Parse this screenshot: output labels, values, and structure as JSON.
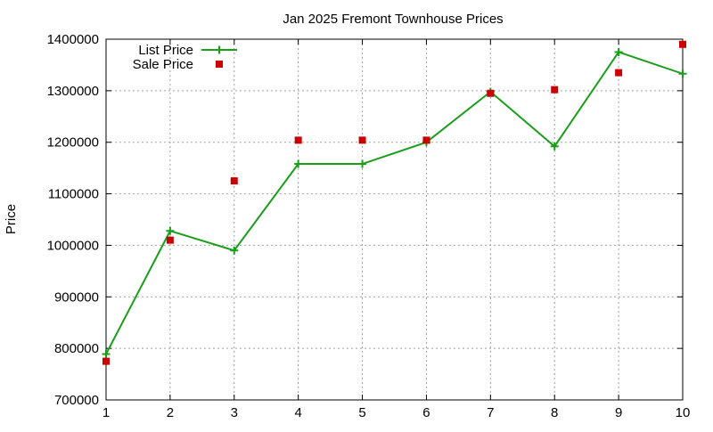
{
  "chart_data": {
    "type": "line",
    "title": "Jan 2025 Fremont Townhouse Prices",
    "xlabel": "",
    "ylabel": "Price",
    "x": [
      1,
      2,
      3,
      4,
      5,
      6,
      7,
      8,
      9,
      10
    ],
    "xlim": [
      1,
      10
    ],
    "ylim": [
      700000,
      1400000
    ],
    "xticks": [
      1,
      2,
      3,
      4,
      5,
      6,
      7,
      8,
      9,
      10
    ],
    "yticks": [
      700000,
      800000,
      900000,
      1000000,
      1100000,
      1200000,
      1300000,
      1400000
    ],
    "grid": true,
    "legend_position": "top-left",
    "series": [
      {
        "name": "List Price",
        "style": "linespoints",
        "marker": "plus",
        "color": "#1a9e1a",
        "values": [
          789000,
          1028000,
          990000,
          1158000,
          1158000,
          1200000,
          1298000,
          1192000,
          1375000,
          1333000
        ]
      },
      {
        "name": "Sale Price",
        "style": "points",
        "marker": "square",
        "color": "#cc0000",
        "values": [
          775000,
          1010000,
          1125000,
          1204000,
          1204000,
          1204000,
          1295000,
          1302000,
          1335000,
          1390000
        ]
      }
    ]
  }
}
